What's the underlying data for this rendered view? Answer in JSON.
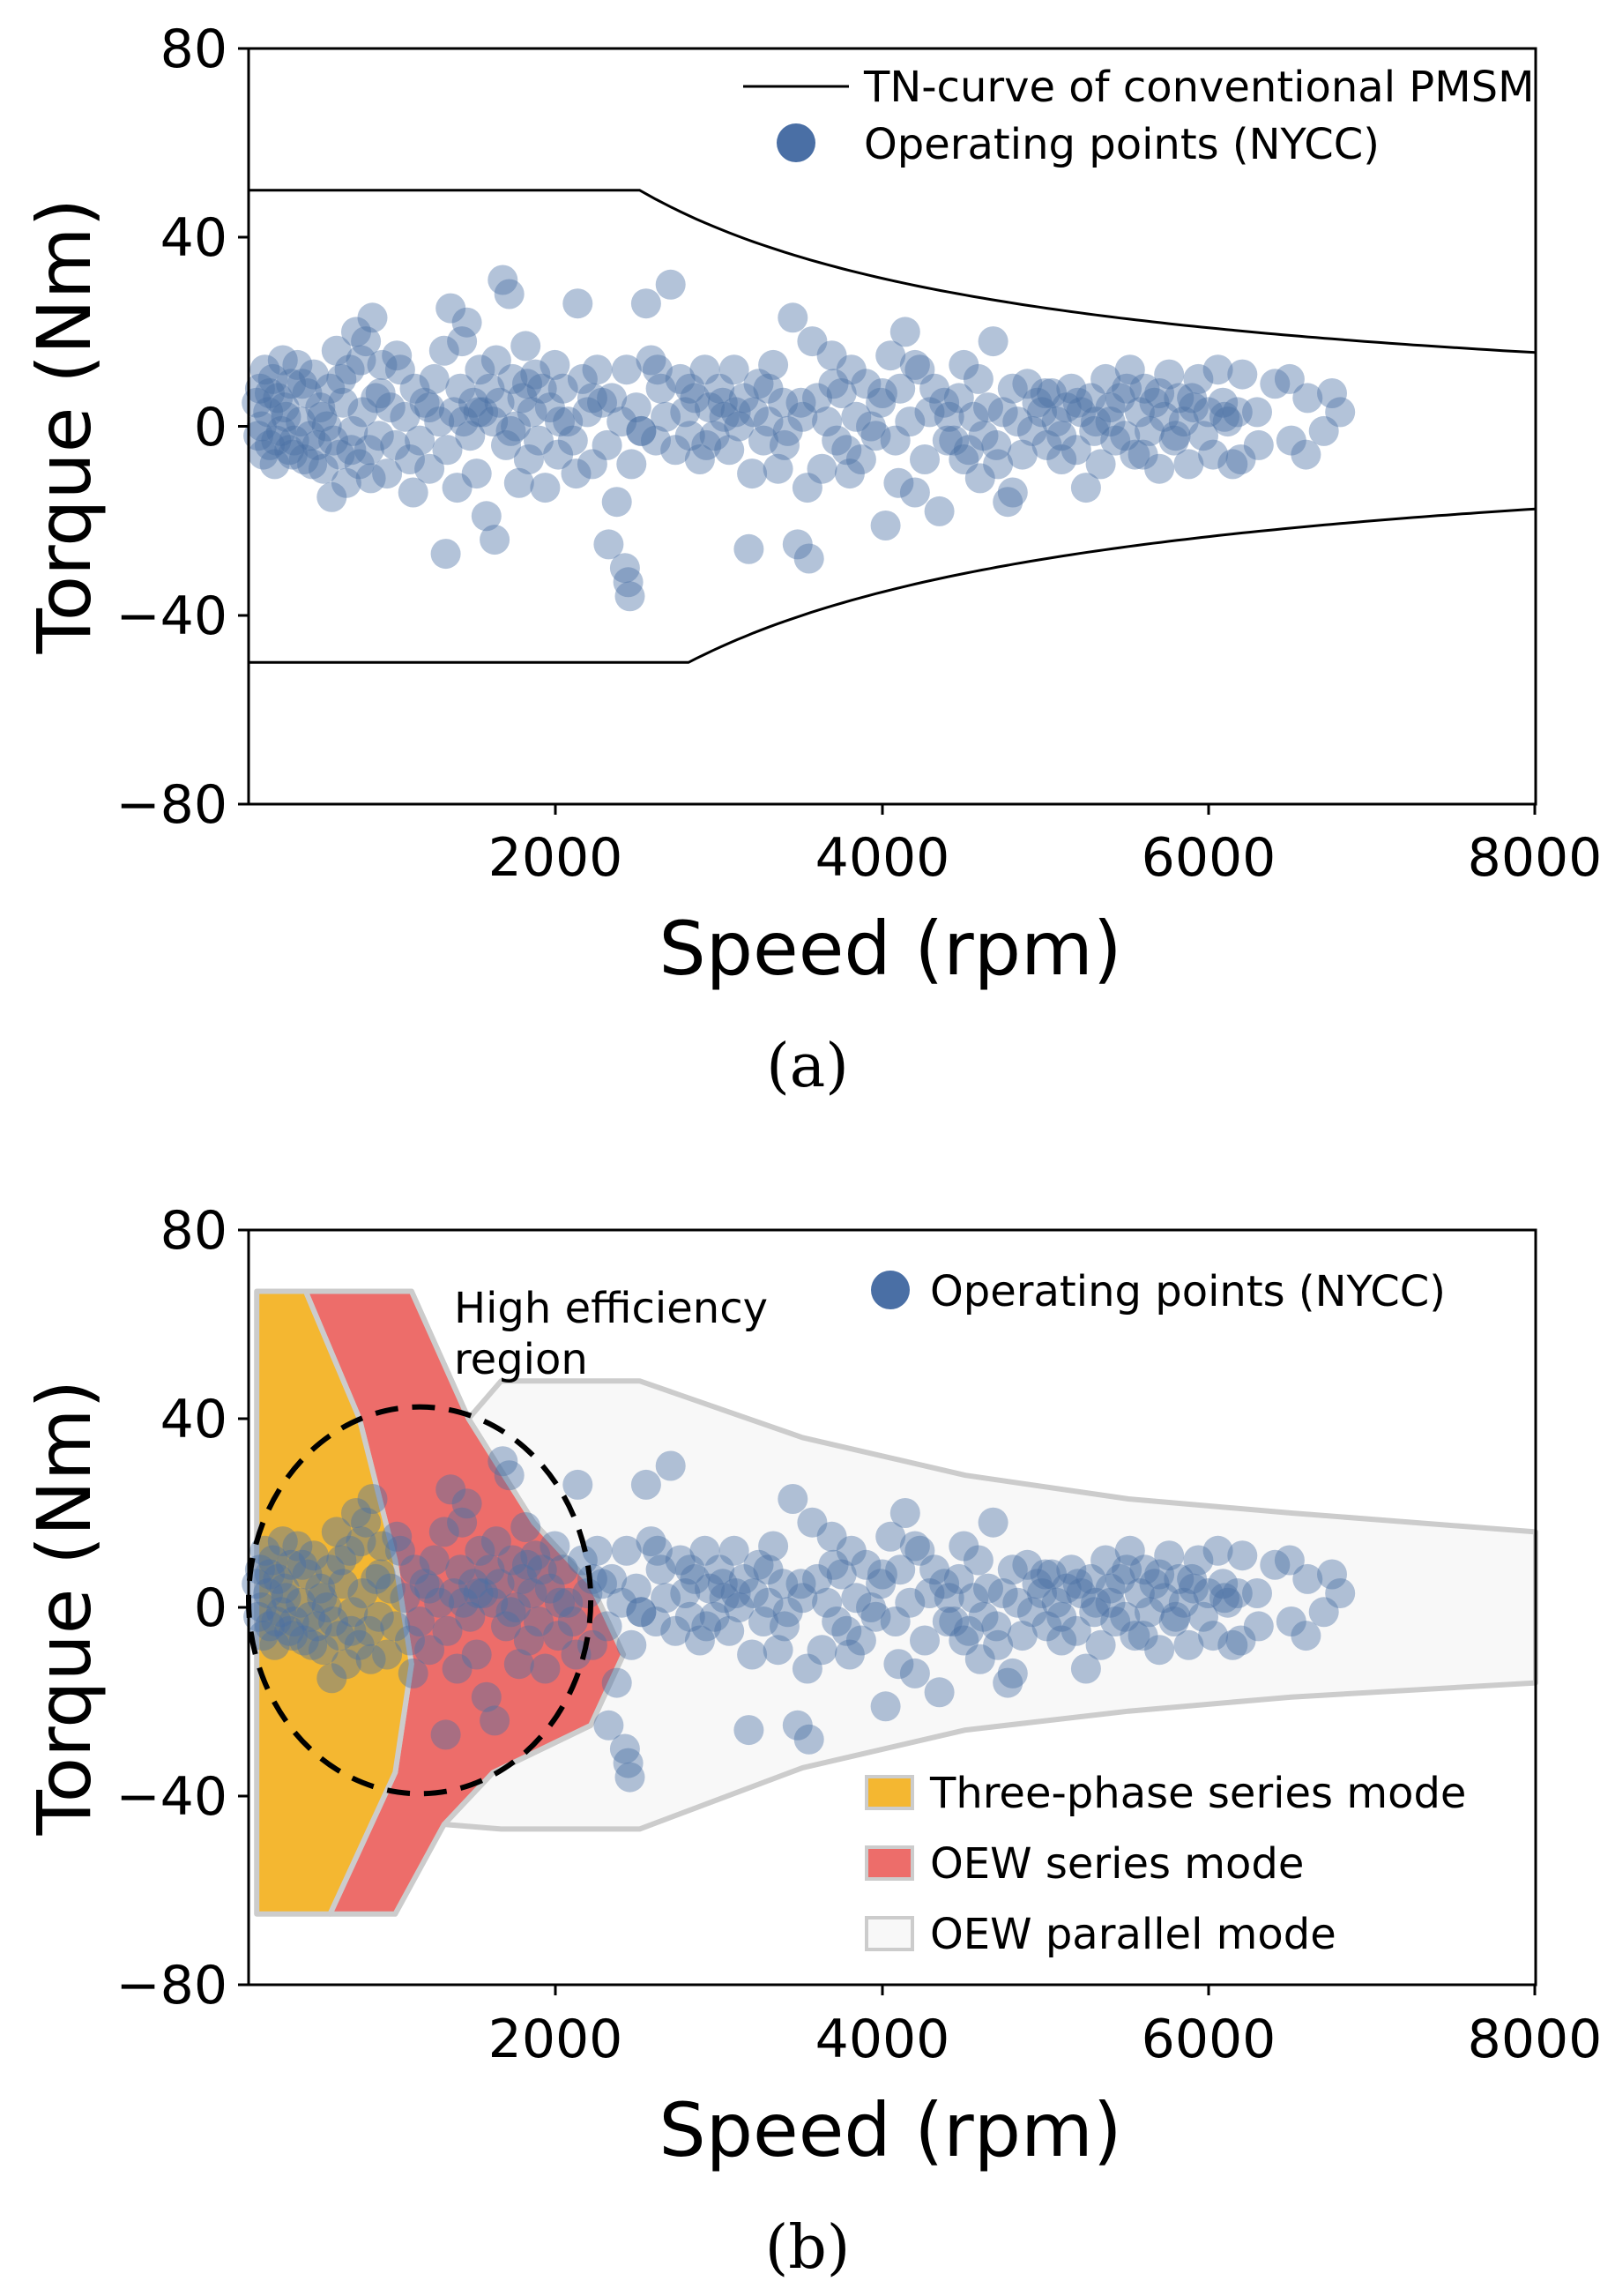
{
  "chart_data": [
    {
      "type": "scatter",
      "caption": "(a)",
      "xlabel": "Speed (rpm)",
      "ylabel": "Torque (Nm)",
      "xlim": [
        100,
        8000
      ],
      "ylim": [
        -80,
        80
      ],
      "xticks": [
        "2000",
        "4000",
        "6000",
        "8000"
      ],
      "yticks": [
        "80",
        "40",
        "0",
        "−40",
        "−80"
      ],
      "legend": {
        "placement": "top-right",
        "entries": [
          "TN-curve of conventional PMSM",
          "Operating points (NYCC)"
        ]
      },
      "colors": {
        "points": "#4a6fa5",
        "line": "#000000"
      },
      "tn_curve": {
        "upper_constant_torque": 50,
        "upper_base_speed": 2500,
        "lower_constant_torque": -50,
        "lower_base_speed": 2800
      },
      "series_ref": "operating_points"
    },
    {
      "type": "scatter",
      "caption": "(b)",
      "xlabel": "Speed (rpm)",
      "ylabel": "Torque (Nm)",
      "xlim": [
        100,
        8000
      ],
      "ylim": [
        -80,
        80
      ],
      "xticks": [
        "2000",
        "4000",
        "6000",
        "8000"
      ],
      "yticks": [
        "80",
        "40",
        "0",
        "−40",
        "−80"
      ],
      "annotation": [
        "High efficiency",
        "region"
      ],
      "legend_top": {
        "placement": "top-right",
        "entries": [
          "Operating points (NYCC)"
        ]
      },
      "legend_bottom": {
        "placement": "bottom-right",
        "entries": [
          "Three-phase series mode",
          "OEW series mode",
          "OEW parallel mode"
        ]
      },
      "colors": {
        "three_phase": "#f4b731",
        "oew_series": "#ed6d6a",
        "oew_parallel": "#f8f8f8",
        "outline": "#cccccc",
        "points": "#4a6fa5"
      },
      "regions": {
        "three_phase": [
          [
            150,
            67
          ],
          [
            450,
            67
          ],
          [
            780,
            40
          ],
          [
            1000,
            10
          ],
          [
            1100,
            -12
          ],
          [
            1000,
            -35
          ],
          [
            600,
            -65
          ],
          [
            150,
            -65
          ]
        ],
        "oew_series": [
          [
            450,
            67
          ],
          [
            1100,
            67
          ],
          [
            1450,
            40
          ],
          [
            1850,
            18
          ],
          [
            2200,
            5
          ],
          [
            2400,
            -10
          ],
          [
            2200,
            -25
          ],
          [
            1600,
            -35
          ],
          [
            1300,
            -46
          ],
          [
            1000,
            -65
          ],
          [
            600,
            -65
          ],
          [
            1000,
            -35
          ],
          [
            1100,
            -12
          ],
          [
            1000,
            10
          ],
          [
            780,
            40
          ]
        ],
        "oew_parallel": [
          [
            1100,
            67
          ],
          [
            1450,
            40
          ],
          [
            1650,
            48
          ],
          [
            2500,
            48
          ],
          [
            3500,
            36
          ],
          [
            4500,
            28
          ],
          [
            5500,
            23
          ],
          [
            6500,
            20
          ],
          [
            8000,
            16
          ],
          [
            8000,
            -16
          ],
          [
            6500,
            -19
          ],
          [
            5500,
            -22
          ],
          [
            4500,
            -26
          ],
          [
            3500,
            -34
          ],
          [
            2500,
            -47
          ],
          [
            1650,
            -47
          ],
          [
            1300,
            -46
          ],
          [
            1600,
            -35
          ],
          [
            2200,
            -25
          ],
          [
            2400,
            -10
          ],
          [
            2200,
            5
          ],
          [
            1850,
            18
          ],
          [
            1450,
            40
          ]
        ]
      },
      "ellipse": {
        "cx": 1150,
        "cy": 1.5,
        "rx": 1050,
        "ry": 41
      },
      "series_ref": "operating_points"
    }
  ],
  "operating_points": [
    [
      150,
      5
    ],
    [
      160,
      -2
    ],
    [
      170,
      8
    ],
    [
      180,
      0
    ],
    [
      190,
      -6
    ],
    [
      200,
      12
    ],
    [
      220,
      3
    ],
    [
      230,
      -4
    ],
    [
      250,
      10
    ],
    [
      260,
      -8
    ],
    [
      280,
      6
    ],
    [
      300,
      -1
    ],
    [
      310,
      14
    ],
    [
      330,
      2
    ],
    [
      350,
      -5
    ],
    [
      360,
      9
    ],
    [
      380,
      -3
    ],
    [
      400,
      13
    ],
    [
      420,
      1
    ],
    [
      440,
      -7
    ],
    [
      460,
      7
    ],
    [
      480,
      -2
    ],
    [
      500,
      11
    ],
    [
      520,
      -4
    ],
    [
      540,
      4
    ],
    [
      560,
      -9
    ],
    [
      580,
      0
    ],
    [
      600,
      8
    ],
    [
      620,
      -3
    ],
    [
      640,
      16
    ],
    [
      660,
      -6
    ],
    [
      680,
      5
    ],
    [
      700,
      -12
    ],
    [
      720,
      12
    ],
    [
      740,
      -1
    ],
    [
      760,
      20
    ],
    [
      780,
      -8
    ],
    [
      800,
      3
    ],
    [
      820,
      18
    ],
    [
      840,
      -5
    ],
    [
      860,
      23
    ],
    [
      880,
      6
    ],
    [
      900,
      -2
    ],
    [
      920,
      13
    ],
    [
      950,
      -10
    ],
    [
      970,
      4
    ],
    [
      1000,
      -4
    ],
    [
      1030,
      12
    ],
    [
      1060,
      2
    ],
    [
      1090,
      -7
    ],
    [
      1120,
      8
    ],
    [
      1150,
      -3
    ],
    [
      1180,
      5
    ],
    [
      1210,
      -9
    ],
    [
      1240,
      10
    ],
    [
      1270,
      1
    ],
    [
      1300,
      16
    ],
    [
      1320,
      -5
    ],
    [
      1340,
      25
    ],
    [
      1360,
      3
    ],
    [
      1380,
      -13
    ],
    [
      1400,
      8
    ],
    [
      1420,
      1
    ],
    [
      1440,
      22
    ],
    [
      1460,
      -2
    ],
    [
      1480,
      5
    ],
    [
      1500,
      -10
    ],
    [
      1520,
      12
    ],
    [
      1540,
      3
    ],
    [
      1560,
      -19
    ],
    [
      1580,
      8
    ],
    [
      1600,
      1
    ],
    [
      1620,
      14
    ],
    [
      1640,
      5
    ],
    [
      1660,
      31
    ],
    [
      1680,
      -4
    ],
    [
      1700,
      28
    ],
    [
      1720,
      10
    ],
    [
      1740,
      0
    ],
    [
      1760,
      -12
    ],
    [
      1780,
      6
    ],
    [
      1800,
      17
    ],
    [
      1820,
      -7
    ],
    [
      1840,
      3
    ],
    [
      1860,
      11
    ],
    [
      1880,
      -3
    ],
    [
      1900,
      8
    ],
    [
      1920,
      -13
    ],
    [
      1950,
      4
    ],
    [
      1980,
      13
    ],
    [
      2000,
      -6
    ],
    [
      2030,
      8
    ],
    [
      2060,
      1
    ],
    [
      2090,
      -3
    ],
    [
      2120,
      26
    ],
    [
      2150,
      10
    ],
    [
      2180,
      3
    ],
    [
      2210,
      -8
    ],
    [
      2240,
      12
    ],
    [
      2270,
      5
    ],
    [
      2300,
      -4
    ],
    [
      2330,
      6
    ],
    [
      2360,
      -16
    ],
    [
      2390,
      1
    ],
    [
      2420,
      12
    ],
    [
      2450,
      -8
    ],
    [
      2480,
      4
    ],
    [
      2510,
      -1
    ],
    [
      2540,
      26
    ],
    [
      2570,
      14
    ],
    [
      2600,
      -3
    ],
    [
      2630,
      8
    ],
    [
      2660,
      2
    ],
    [
      2690,
      30
    ],
    [
      2720,
      -5
    ],
    [
      2750,
      10
    ],
    [
      2780,
      3
    ],
    [
      2810,
      -2
    ],
    [
      2840,
      6
    ],
    [
      2870,
      -7
    ],
    [
      2900,
      12
    ],
    [
      2930,
      4
    ],
    [
      2960,
      -2
    ],
    [
      2990,
      8
    ],
    [
      3020,
      2
    ],
    [
      3050,
      -5
    ],
    [
      3080,
      12
    ],
    [
      3110,
      0
    ],
    [
      3140,
      6
    ],
    [
      3170,
      -26
    ],
    [
      3200,
      3
    ],
    [
      3230,
      9
    ],
    [
      3260,
      -3
    ],
    [
      3290,
      1
    ],
    [
      3320,
      13
    ],
    [
      3350,
      -9
    ],
    [
      3380,
      5
    ],
    [
      3410,
      -1
    ],
    [
      3440,
      23
    ],
    [
      3470,
      -25
    ],
    [
      3500,
      2
    ],
    [
      3530,
      -13
    ],
    [
      3560,
      18
    ],
    [
      3590,
      6
    ],
    [
      3620,
      -9
    ],
    [
      3650,
      1
    ],
    [
      3680,
      15
    ],
    [
      3710,
      -3
    ],
    [
      3740,
      7
    ],
    [
      3770,
      -5
    ],
    [
      3800,
      12
    ],
    [
      3830,
      2
    ],
    [
      3860,
      -7
    ],
    [
      3890,
      9
    ],
    [
      3920,
      0
    ],
    [
      3950,
      -2
    ],
    [
      3980,
      5
    ],
    [
      4010,
      -21
    ],
    [
      4040,
      15
    ],
    [
      4070,
      -3
    ],
    [
      4100,
      8
    ],
    [
      4130,
      20
    ],
    [
      4160,
      1
    ],
    [
      4190,
      -14
    ],
    [
      4220,
      12
    ],
    [
      4250,
      -7
    ],
    [
      4280,
      3
    ],
    [
      4310,
      8
    ],
    [
      4340,
      -18
    ],
    [
      4370,
      5
    ],
    [
      4400,
      2
    ],
    [
      4430,
      -3
    ],
    [
      4460,
      6
    ],
    [
      4490,
      13
    ],
    [
      4520,
      -5
    ],
    [
      4550,
      2
    ],
    [
      4580,
      10
    ],
    [
      4610,
      -2
    ],
    [
      4640,
      4
    ],
    [
      4670,
      18
    ],
    [
      4700,
      -8
    ],
    [
      4730,
      3
    ],
    [
      4760,
      -16
    ],
    [
      4790,
      8
    ],
    [
      4820,
      1
    ],
    [
      4850,
      -6
    ],
    [
      4880,
      9
    ],
    [
      4910,
      -1
    ],
    [
      4940,
      5
    ],
    [
      4970,
      3
    ],
    [
      5000,
      -4
    ],
    [
      5030,
      7
    ],
    [
      5060,
      1
    ],
    [
      5090,
      -2
    ],
    [
      5120,
      4
    ],
    [
      5150,
      8
    ],
    [
      5180,
      -5
    ],
    [
      5210,
      3
    ],
    [
      5240,
      -13
    ],
    [
      5270,
      6
    ],
    [
      5300,
      1
    ],
    [
      5330,
      -8
    ],
    [
      5360,
      10
    ],
    [
      5390,
      4
    ],
    [
      5420,
      -3
    ],
    [
      5450,
      6
    ],
    [
      5480,
      -2
    ],
    [
      5510,
      12
    ],
    [
      5540,
      -6
    ],
    [
      5570,
      3
    ],
    [
      5600,
      8
    ],
    [
      5630,
      -1
    ],
    [
      5660,
      5
    ],
    [
      5690,
      -9
    ],
    [
      5720,
      2
    ],
    [
      5750,
      11
    ],
    [
      5780,
      -3
    ],
    [
      5810,
      6
    ],
    [
      5840,
      1
    ],
    [
      5870,
      -8
    ],
    [
      5900,
      4
    ],
    [
      5930,
      10
    ],
    [
      5960,
      -2
    ],
    [
      5990,
      3
    ],
    [
      6020,
      -6
    ],
    [
      6050,
      12
    ],
    [
      6080,
      5
    ],
    [
      6110,
      1
    ],
    [
      6140,
      -8
    ],
    [
      6170,
      3
    ],
    [
      6200,
      11
    ],
    [
      6300,
      -4
    ],
    [
      6400,
      9
    ],
    [
      6500,
      -3
    ],
    [
      6600,
      6
    ],
    [
      6700,
      -1
    ],
    [
      6750,
      7
    ],
    [
      6800,
      3
    ],
    [
      230,
      7
    ],
    [
      270,
      -3
    ],
    [
      320,
      4
    ],
    [
      370,
      -6
    ],
    [
      430,
      9
    ],
    [
      490,
      -8
    ],
    [
      550,
      2
    ],
    [
      610,
      -15
    ],
    [
      670,
      10
    ],
    [
      730,
      -5
    ],
    [
      790,
      14
    ],
    [
      850,
      -11
    ],
    [
      910,
      7
    ],
    [
      1010,
      15
    ],
    [
      1110,
      -14
    ],
    [
      1210,
      4
    ],
    [
      1310,
      -27
    ],
    [
      1410,
      18
    ],
    [
      1510,
      3
    ],
    [
      1610,
      -24
    ],
    [
      1710,
      -1
    ],
    [
      1810,
      9
    ],
    [
      2010,
      1
    ],
    [
      2110,
      -10
    ],
    [
      2210,
      6
    ],
    [
      2310,
      -25
    ],
    [
      2410,
      -30
    ],
    [
      2430,
      -33
    ],
    [
      2440,
      -36
    ],
    [
      2510,
      -1
    ],
    [
      2610,
      12
    ],
    [
      2810,
      8
    ],
    [
      2910,
      -4
    ],
    [
      3010,
      5
    ],
    [
      3090,
      3
    ],
    [
      3190,
      -10
    ],
    [
      3290,
      8
    ],
    [
      3390,
      -4
    ],
    [
      3490,
      5
    ],
    [
      3540,
      -28
    ],
    [
      3690,
      9
    ],
    [
      3790,
      -10
    ],
    [
      3990,
      7
    ],
    [
      4090,
      -12
    ],
    [
      4190,
      13
    ],
    [
      4390,
      -3
    ],
    [
      4490,
      -7
    ],
    [
      4590,
      -11
    ],
    [
      4690,
      -4
    ],
    [
      4790,
      -14
    ],
    [
      4990,
      7
    ],
    [
      5090,
      -7
    ],
    [
      5190,
      5
    ],
    [
      5290,
      -1
    ],
    [
      5390,
      1
    ],
    [
      5490,
      8
    ],
    [
      5590,
      -6
    ],
    [
      5690,
      7
    ],
    [
      5790,
      -2
    ],
    [
      5890,
      6
    ],
    [
      6090,
      2
    ],
    [
      6190,
      -7
    ],
    [
      6290,
      3
    ],
    [
      6490,
      10
    ],
    [
      6590,
      -6
    ]
  ]
}
